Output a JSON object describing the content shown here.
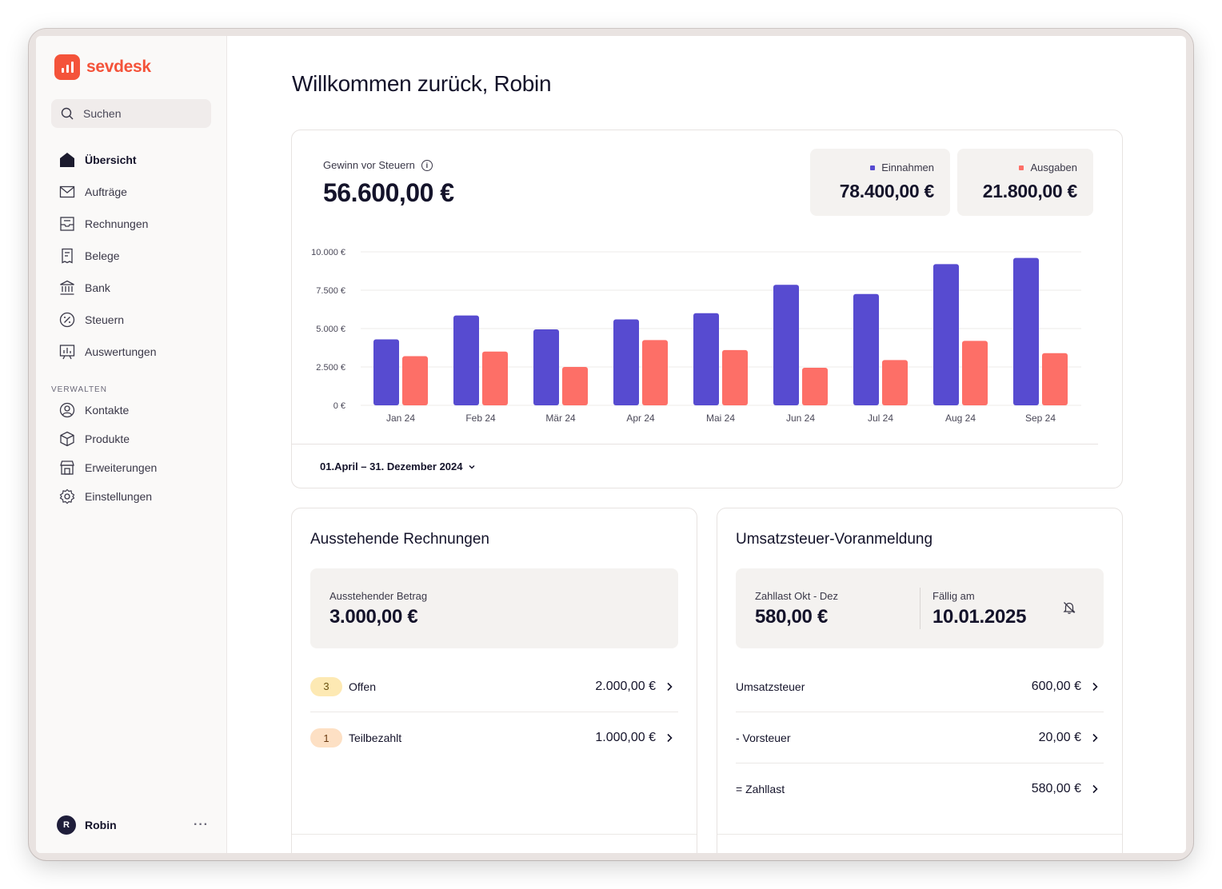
{
  "app": {
    "name": "sevdesk"
  },
  "search": {
    "label": "Suchen"
  },
  "sidebar": {
    "items": [
      {
        "label": "Übersicht",
        "icon": "home-icon",
        "active": true
      },
      {
        "label": "Aufträge",
        "icon": "mail-icon"
      },
      {
        "label": "Rechnungen",
        "icon": "inbox-icon"
      },
      {
        "label": "Belege",
        "icon": "receipt-icon"
      },
      {
        "label": "Bank",
        "icon": "bank-icon"
      },
      {
        "label": "Steuern",
        "icon": "percent-icon"
      },
      {
        "label": "Auswertungen",
        "icon": "chart-icon"
      }
    ],
    "section_label": "VERWALTEN",
    "manage_items": [
      {
        "label": "Kontakte",
        "icon": "contact-icon"
      },
      {
        "label": "Produkte",
        "icon": "box-icon"
      },
      {
        "label": "Erweiterungen",
        "icon": "store-icon"
      },
      {
        "label": "Einstellungen",
        "icon": "gear-icon"
      }
    ],
    "user": {
      "initial": "R",
      "name": "Robin",
      "more": "···"
    }
  },
  "main": {
    "title": "Willkommen zurück, Robin",
    "profit": {
      "label": "Gewinn vor Steuern",
      "value": "56.600,00 €",
      "income_label": "Einnahmen",
      "income_value": "78.400,00 €",
      "expense_label": "Ausgaben",
      "expense_value": "21.800,00 €",
      "date_range": "01.April – 31. Dezember 2024"
    },
    "outstanding": {
      "title": "Ausstehende Rechnungen",
      "summary_label": "Ausstehender Betrag",
      "summary_value": "3.000,00 €",
      "rows": [
        {
          "count": "3",
          "label": "Offen",
          "amount": "2.000,00 €"
        },
        {
          "count": "1",
          "label": "Teilbezahlt",
          "amount": "1.000,00 €"
        }
      ]
    },
    "vat": {
      "title": "Umsatzsteuer-Voranmeldung",
      "summary_label": "Zahllast Okt - Dez",
      "summary_value": "580,00 €",
      "due_label": "Fällig am",
      "due_value": "10.01.2025",
      "rows": [
        {
          "label": "Umsatzsteuer",
          "amount": "600,00 €"
        },
        {
          "label": "- Vorsteuer",
          "amount": "20,00 €"
        },
        {
          "label": "= Zahllast",
          "amount": "580,00 €"
        }
      ]
    }
  },
  "colors": {
    "brand": "#f4533a",
    "income": "#574bd0",
    "expense": "#fd6f67"
  },
  "chart_data": {
    "type": "bar",
    "categories": [
      "Jan 24",
      "Feb 24",
      "Mär 24",
      "Apr 24",
      "Mai 24",
      "Jun 24",
      "Jul 24",
      "Aug 24",
      "Sep 24"
    ],
    "series": [
      {
        "name": "Einnahmen",
        "values": [
          4300,
          5850,
          4950,
          5600,
          6000,
          7850,
          7250,
          9200,
          9600
        ]
      },
      {
        "name": "Ausgaben",
        "values": [
          3200,
          3500,
          2500,
          4250,
          3600,
          2450,
          2950,
          4200,
          3400
        ]
      }
    ],
    "yticks": [
      "10.000 €",
      "7.500 €",
      "5.000 €",
      "2.500 €",
      "0 €"
    ],
    "ylim": [
      0,
      10000
    ],
    "grid": true
  }
}
